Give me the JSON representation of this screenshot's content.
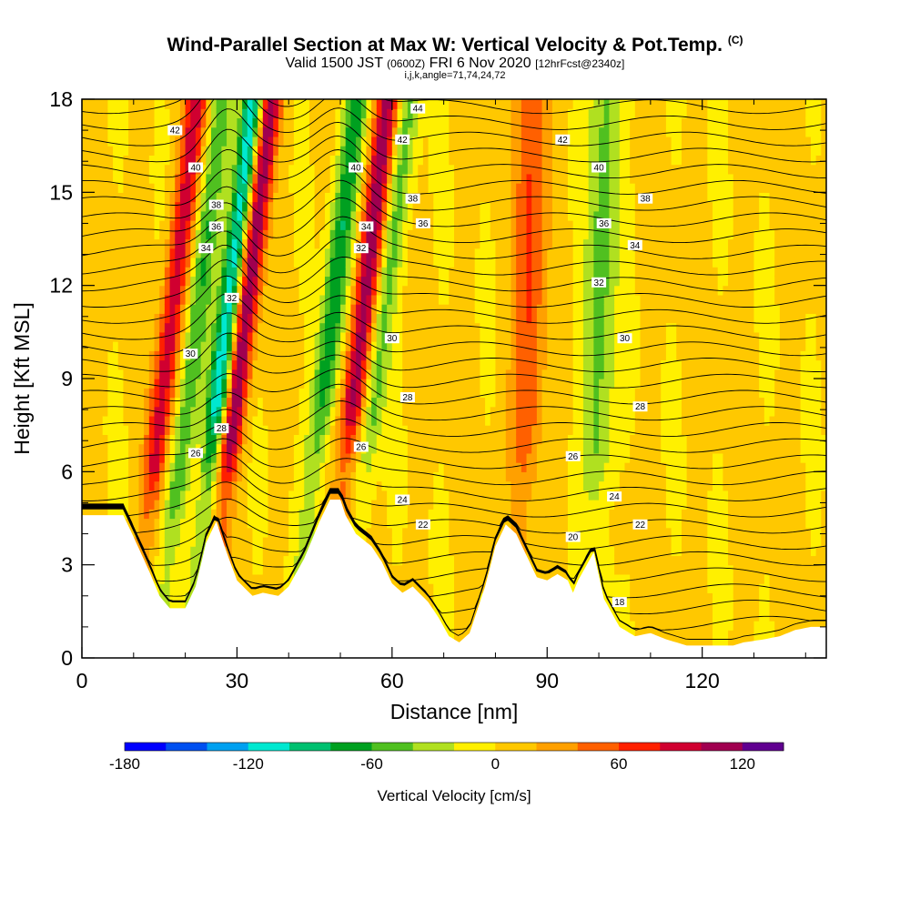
{
  "title": {
    "main": "Wind-Parallel Section at Max W: Vertical Velocity & Pot.Temp.",
    "copyright": "(C)",
    "valid_prefix": "Valid 1500 JST",
    "valid_utc": "(0600Z)",
    "valid_date": "FRI 6 Nov 2020",
    "forecast": "[12hrFcst@2340z]",
    "params": "i,j,k,angle=71,74,24,72"
  },
  "chart_data": {
    "type": "heatmap",
    "xlabel": "Distance [nm]",
    "ylabel": "Height [Kft MSL]",
    "xlim": [
      0,
      144
    ],
    "ylim": [
      0,
      18
    ],
    "x_ticks": [
      0,
      30,
      60,
      90,
      120
    ],
    "y_ticks": [
      0,
      3,
      6,
      9,
      12,
      15,
      18
    ],
    "x_tick_labels": [
      "0",
      "30",
      "60",
      "90",
      "120"
    ],
    "y_tick_labels": [
      "0",
      "3",
      "6",
      "9",
      "12",
      "15",
      "18"
    ],
    "colorbar": {
      "label": "Vertical Velocity [cm/s]",
      "min": -180,
      "max": 140,
      "step": 20,
      "tick_values": [
        -180,
        -120,
        -60,
        0,
        60,
        120
      ],
      "tick_labels": [
        "-180",
        "-120",
        "-60",
        "0",
        "60",
        "120"
      ],
      "colors": [
        "#0000ff",
        "#0050f0",
        "#00a0f0",
        "#00e8d0",
        "#00c070",
        "#00a020",
        "#50c020",
        "#b0e020",
        "#fff000",
        "#ffc800",
        "#ffa000",
        "#ff6000",
        "#ff2000",
        "#d00030",
        "#a00050",
        "#600090"
      ]
    },
    "vertical_velocity_features": [
      {
        "x": 16,
        "value": 90,
        "note": "updraft"
      },
      {
        "x": 21,
        "value": -60,
        "note": "downdraft"
      },
      {
        "x": 27,
        "value": -130,
        "note": "downdraft"
      },
      {
        "x": 30,
        "value": 130,
        "note": "updraft"
      },
      {
        "x": 47,
        "value": -80,
        "note": "downdraft"
      },
      {
        "x": 53,
        "value": 110,
        "note": "updraft"
      },
      {
        "x": 57,
        "value": -50,
        "note": "downdraft"
      },
      {
        "x": 86,
        "value": 60,
        "note": "updraft"
      },
      {
        "x": 100,
        "value": -50,
        "note": "downdraft"
      }
    ],
    "terrain_kft": [
      [
        0,
        4.6
      ],
      [
        8,
        4.6
      ],
      [
        10,
        3.9
      ],
      [
        13,
        2.8
      ],
      [
        15,
        2.0
      ],
      [
        17,
        1.6
      ],
      [
        20,
        1.6
      ],
      [
        22,
        2.3
      ],
      [
        24,
        3.7
      ],
      [
        26,
        4.4
      ],
      [
        28,
        3.4
      ],
      [
        30,
        2.5
      ],
      [
        33,
        2.0
      ],
      [
        35,
        2.1
      ],
      [
        38,
        2.0
      ],
      [
        40,
        2.3
      ],
      [
        43,
        3.2
      ],
      [
        46,
        4.4
      ],
      [
        48,
        5.1
      ],
      [
        50,
        5.1
      ],
      [
        51,
        4.6
      ],
      [
        53,
        4.0
      ],
      [
        56,
        3.6
      ],
      [
        58,
        3.1
      ],
      [
        60,
        2.4
      ],
      [
        62,
        2.1
      ],
      [
        64,
        2.3
      ],
      [
        67,
        1.8
      ],
      [
        69,
        1.3
      ],
      [
        71,
        0.7
      ],
      [
        73,
        0.5
      ],
      [
        75,
        0.8
      ],
      [
        78,
        2.3
      ],
      [
        80,
        3.6
      ],
      [
        82,
        4.3
      ],
      [
        84,
        4.0
      ],
      [
        86,
        3.3
      ],
      [
        88,
        2.6
      ],
      [
        90,
        2.5
      ],
      [
        92,
        2.7
      ],
      [
        94,
        2.5
      ],
      [
        95,
        2.1
      ],
      [
        96,
        2.5
      ],
      [
        99,
        3.4
      ],
      [
        101,
        1.9
      ],
      [
        104,
        1.0
      ],
      [
        107,
        0.7
      ],
      [
        110,
        0.8
      ],
      [
        113,
        0.6
      ],
      [
        117,
        0.4
      ],
      [
        122,
        0.4
      ],
      [
        126,
        0.4
      ],
      [
        128,
        0.5
      ],
      [
        132,
        0.6
      ],
      [
        135,
        0.7
      ],
      [
        138,
        0.9
      ],
      [
        141,
        1.0
      ],
      [
        144,
        1.0
      ]
    ],
    "theta_contour_labels": [
      {
        "text": "44",
        "x": 65,
        "y": 17.7
      },
      {
        "text": "42",
        "x": 18,
        "y": 17.0
      },
      {
        "text": "42",
        "x": 62,
        "y": 16.7
      },
      {
        "text": "42",
        "x": 93,
        "y": 16.7
      },
      {
        "text": "40",
        "x": 22,
        "y": 15.8
      },
      {
        "text": "40",
        "x": 53,
        "y": 15.8
      },
      {
        "text": "40",
        "x": 100,
        "y": 15.8
      },
      {
        "text": "38",
        "x": 26,
        "y": 14.6
      },
      {
        "text": "38",
        "x": 64,
        "y": 14.8
      },
      {
        "text": "38",
        "x": 109,
        "y": 14.8
      },
      {
        "text": "36",
        "x": 26,
        "y": 13.9
      },
      {
        "text": "36",
        "x": 66,
        "y": 14.0
      },
      {
        "text": "36",
        "x": 101,
        "y": 14.0
      },
      {
        "text": "34",
        "x": 24,
        "y": 13.2
      },
      {
        "text": "34",
        "x": 55,
        "y": 13.9
      },
      {
        "text": "34",
        "x": 107,
        "y": 13.3
      },
      {
        "text": "32",
        "x": 54,
        "y": 13.2
      },
      {
        "text": "32",
        "x": 29,
        "y": 11.6
      },
      {
        "text": "32",
        "x": 100,
        "y": 12.1
      },
      {
        "text": "30",
        "x": 21,
        "y": 9.8
      },
      {
        "text": "30",
        "x": 60,
        "y": 10.3
      },
      {
        "text": "30",
        "x": 105,
        "y": 10.3
      },
      {
        "text": "28",
        "x": 63,
        "y": 8.4
      },
      {
        "text": "28",
        "x": 108,
        "y": 8.1
      },
      {
        "text": "28",
        "x": 27,
        "y": 7.4
      },
      {
        "text": "26",
        "x": 22,
        "y": 6.6
      },
      {
        "text": "26",
        "x": 54,
        "y": 6.8
      },
      {
        "text": "26",
        "x": 95,
        "y": 6.5
      },
      {
        "text": "24",
        "x": 62,
        "y": 5.1
      },
      {
        "text": "24",
        "x": 103,
        "y": 5.2
      },
      {
        "text": "22",
        "x": 66,
        "y": 4.3
      },
      {
        "text": "22",
        "x": 108,
        "y": 4.3
      },
      {
        "text": "20",
        "x": 95,
        "y": 3.9
      },
      {
        "text": "18",
        "x": 104,
        "y": 1.8
      }
    ]
  }
}
